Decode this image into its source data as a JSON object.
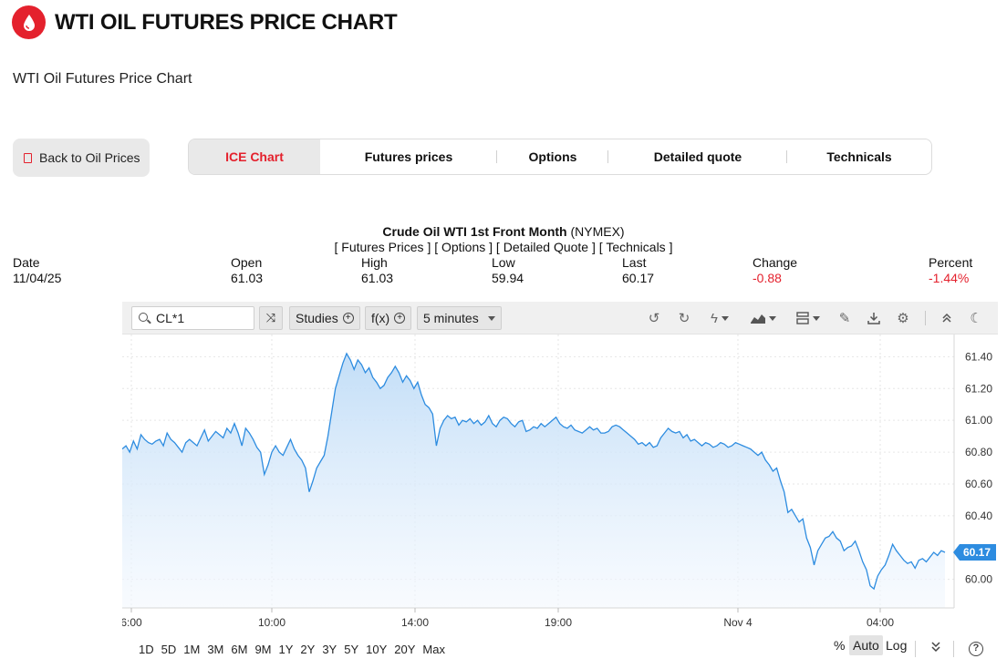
{
  "header": {
    "title": "WTI OIL FUTURES PRICE CHART",
    "subtitle": "WTI Oil Futures Price Chart"
  },
  "back_button": {
    "label": "Back to Oil Prices"
  },
  "tabs": [
    {
      "label": "ICE Chart",
      "active": true
    },
    {
      "label": "Futures prices",
      "active": false
    },
    {
      "label": "Options",
      "active": false
    },
    {
      "label": "Detailed quote",
      "active": false
    },
    {
      "label": "Technicals",
      "active": false
    }
  ],
  "quote": {
    "name": "Crude Oil WTI 1st Front Month",
    "exchange": "(NYMEX)",
    "links": {
      "open": "[",
      "futures": "Futures Prices",
      "sep1": "] [",
      "options": "Options",
      "sep2": "] [",
      "detailed": "Detailed Quote",
      "sep3": "] [",
      "technicals": "Technicals",
      "close": "]"
    },
    "stats": [
      {
        "label": "Date",
        "value": "11/04/25",
        "negative": false
      },
      {
        "label": "Open",
        "value": "61.03",
        "negative": false
      },
      {
        "label": "High",
        "value": "61.03",
        "negative": false
      },
      {
        "label": "Low",
        "value": "59.94",
        "negative": false
      },
      {
        "label": "Last",
        "value": "60.17",
        "negative": false
      },
      {
        "label": "Change",
        "value": "-0.88",
        "negative": true
      },
      {
        "label": "Percent",
        "value": "-1.44%",
        "negative": true
      }
    ]
  },
  "toolbar": {
    "symbol": "CL*1",
    "studies_label": "Studies",
    "fx_label": "f(x)",
    "interval": "5 minutes"
  },
  "ranges": [
    "1D",
    "5D",
    "1M",
    "3M",
    "6M",
    "9M",
    "1Y",
    "2Y",
    "3Y",
    "5Y",
    "10Y",
    "20Y",
    "Max"
  ],
  "scale": {
    "percent": "%",
    "auto": "Auto",
    "log": "Log"
  },
  "colors": {
    "accent": "#e4212d",
    "line": "#2d8ce0",
    "fill": "#d7eafc",
    "negative": "#e4212d"
  },
  "chart_data": {
    "type": "area",
    "x_tick_labels": [
      "6:00",
      "10:00",
      "14:00",
      "19:00",
      "Nov 4",
      "04:00"
    ],
    "y_tick_labels": [
      "61.40",
      "61.20",
      "61.00",
      "60.80",
      "60.60",
      "60.40",
      "60.00"
    ],
    "ylim": [
      59.82,
      61.54
    ],
    "last_price_label": "60.17",
    "series": [
      {
        "values": [
          60.82,
          60.84,
          60.8,
          60.87,
          60.82,
          60.91,
          60.88,
          60.86,
          60.85,
          60.87,
          60.88,
          60.84,
          60.92,
          60.88,
          60.86,
          60.83,
          60.8,
          60.86,
          60.88,
          60.86,
          60.84,
          60.89,
          60.94,
          60.87,
          60.9,
          60.93,
          60.91,
          60.89,
          60.95,
          60.92,
          60.98,
          60.92,
          60.84,
          60.95,
          60.92,
          60.88,
          60.83,
          60.8,
          60.66,
          60.72,
          60.8,
          60.84,
          60.8,
          60.78,
          60.83,
          60.88,
          60.82,
          60.78,
          60.75,
          60.7,
          60.55,
          60.62,
          60.7,
          60.74,
          60.78,
          60.9,
          61.05,
          61.2,
          61.28,
          61.36,
          61.42,
          61.38,
          61.32,
          61.38,
          61.35,
          61.3,
          61.33,
          61.27,
          61.24,
          61.2,
          61.22,
          61.27,
          61.3,
          61.34,
          61.3,
          61.24,
          61.28,
          61.25,
          61.2,
          61.24,
          61.16,
          61.1,
          61.08,
          61.04,
          60.84,
          60.95,
          61.0,
          61.03,
          61.01,
          61.02,
          60.97,
          61.0,
          60.99,
          61.01,
          60.98,
          61.0,
          60.97,
          60.99,
          61.03,
          60.98,
          60.96,
          61.0,
          61.02,
          61.01,
          60.98,
          60.96,
          60.99,
          61.0,
          60.93,
          60.94,
          60.96,
          60.95,
          60.98,
          60.96,
          60.98,
          61.0,
          61.02,
          60.98,
          60.96,
          60.95,
          60.97,
          60.94,
          60.93,
          60.92,
          60.94,
          60.96,
          60.94,
          60.95,
          60.92,
          60.92,
          60.93,
          60.96,
          60.97,
          60.96,
          60.94,
          60.92,
          60.9,
          60.88,
          60.85,
          60.86,
          60.84,
          60.86,
          60.83,
          60.84,
          60.89,
          60.92,
          60.95,
          60.93,
          60.92,
          60.93,
          60.89,
          60.91,
          60.87,
          60.88,
          60.86,
          60.84,
          60.86,
          60.85,
          60.83,
          60.84,
          60.86,
          60.85,
          60.83,
          60.84,
          60.86,
          60.85,
          60.84,
          60.83,
          60.82,
          60.8,
          60.78,
          60.8,
          60.75,
          60.72,
          60.68,
          60.7,
          60.62,
          60.55,
          60.42,
          60.44,
          60.4,
          60.36,
          60.38,
          60.26,
          60.2,
          60.09,
          60.18,
          60.22,
          60.26,
          60.27,
          60.3,
          60.26,
          60.24,
          60.18,
          60.2,
          60.21,
          60.24,
          60.18,
          60.11,
          60.06,
          59.96,
          59.94,
          60.02,
          60.06,
          60.09,
          60.15,
          60.22,
          60.18,
          60.15,
          60.12,
          60.1,
          60.11,
          60.07,
          60.12,
          60.13,
          60.11,
          60.14,
          60.17,
          60.15,
          60.18,
          60.17
        ]
      }
    ]
  }
}
